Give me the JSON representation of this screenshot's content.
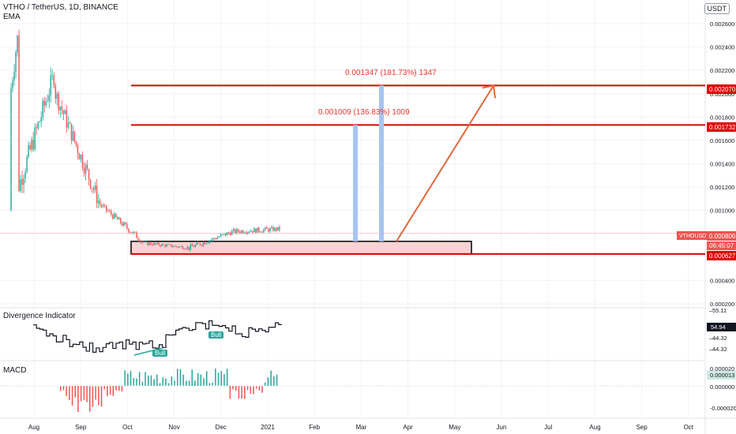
{
  "header": {
    "symbol_title": "VTHO / TetherUS, 1D, BINANCE",
    "indicator_ema": "EMA",
    "currency_button": "USDT"
  },
  "measurements": [
    {
      "label": "0.001347 (181.73%) 1347"
    },
    {
      "label": "0.001009 (136.83%) 1009"
    }
  ],
  "price_tags": {
    "top_line": "0.002070",
    "mid_line": "0.001732",
    "symbol": "VTHOUSDT",
    "last": "0.000806",
    "countdown": "06:45:07",
    "bottom_line": "0.000627"
  },
  "divergence": {
    "title": "Divergence Indicator",
    "bull_label": "Bull",
    "tags": [
      "55.11",
      "54.94",
      "44.32",
      "44.32"
    ]
  },
  "macd": {
    "title": "MACD",
    "tags": [
      "0.000013"
    ]
  },
  "colors": {
    "up": "#26a69a",
    "down": "#ef5350",
    "level_line": "#e00000",
    "arrow": "#e2673c",
    "bar_measure": "#a8c4f0",
    "zone_fill": "#f9d3d3",
    "axis_text": "#131722",
    "grid": "#f0f3fa"
  },
  "chart_data": [
    {
      "type": "candlestick",
      "title": "VTHO / TetherUS, 1D, BINANCE",
      "x_tick_labels": [
        "Aug",
        "Sep",
        "Oct",
        "Nov",
        "Dec",
        "2021",
        "Feb",
        "Mar",
        "Apr",
        "May",
        "Jun",
        "Jul",
        "Aug",
        "Sep",
        "Oct"
      ],
      "y_tick_labels": [
        "0.002600",
        "0.002400",
        "0.002200",
        "0.002000",
        "0.001800",
        "0.001600",
        "0.001400",
        "0.001200",
        "0.001000",
        "0.000800",
        "0.000400",
        "0.000200"
      ],
      "ylim": [
        0.0002,
        0.0029
      ],
      "horizontal_levels": [
        0.00207,
        0.001732,
        0.000627
      ],
      "support_zone": [
        0.000627,
        0.000735
      ],
      "last_price": 0.000806,
      "segments": [
        {
          "month": "Jul-Aug",
          "start": 0.001,
          "end": 0.0022,
          "high": 0.0025,
          "low": 0.001
        },
        {
          "month": "Aug-Sep",
          "start": 0.002,
          "end": 0.00105,
          "high": 0.00215,
          "low": 0.0009
        },
        {
          "month": "Sep-Oct",
          "start": 0.00105,
          "end": 0.00072,
          "high": 0.0011,
          "low": 0.00062
        },
        {
          "month": "Oct-Nov",
          "start": 0.00072,
          "end": 0.00068,
          "high": 0.0008,
          "low": 0.00055
        },
        {
          "month": "Nov-Dec",
          "start": 0.00068,
          "end": 0.00082,
          "high": 0.00098,
          "low": 0.00062
        },
        {
          "month": "Dec-Jan",
          "start": 0.00082,
          "end": 0.00084,
          "high": 0.001,
          "low": 0.00065
        }
      ]
    },
    {
      "type": "line",
      "title": "Divergence Indicator",
      "y_tick_labels": [
        "55.11",
        "44.32",
        "44.32"
      ],
      "last_value": 54.94
    },
    {
      "type": "bar",
      "title": "MACD",
      "y_tick_labels": [
        "0.000020",
        "0.000000",
        "-0.000020"
      ],
      "last_value": 1.3e-05
    }
  ]
}
